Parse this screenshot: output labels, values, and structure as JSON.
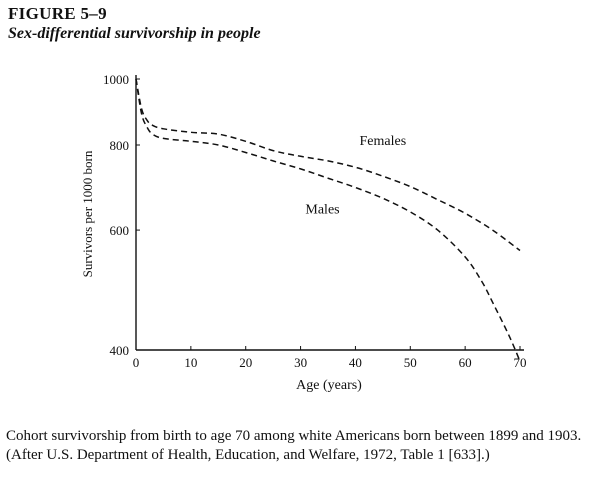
{
  "figure": {
    "label": "FIGURE 5–9",
    "title": "Sex-differential survivorship in people",
    "caption": "Cohort survivorship from birth to age 70 among white Americans born between 1899 and 1903. (After U.S. Department of Health, Education, and Welfare, 1972, Table 1 [633].)"
  },
  "chart_data": {
    "type": "line",
    "xlabel": "Age (years)",
    "ylabel": "Survivors per 1000 born",
    "xlim": [
      0,
      70
    ],
    "ylim": [
      400,
      1000
    ],
    "yscale": "log",
    "x_ticks": [
      0,
      10,
      20,
      30,
      40,
      50,
      60,
      70
    ],
    "y_ticks": [
      400,
      600,
      800,
      1000
    ],
    "grid": false,
    "line_style": "dashed",
    "series": [
      {
        "name": "Females",
        "x": [
          0,
          1,
          2,
          3,
          5,
          10,
          15,
          20,
          25,
          30,
          35,
          40,
          45,
          50,
          55,
          60,
          65,
          70
        ],
        "y": [
          1000,
          905,
          870,
          855,
          845,
          835,
          830,
          810,
          785,
          770,
          758,
          742,
          720,
          695,
          665,
          635,
          600,
          560
        ]
      },
      {
        "name": "Males",
        "x": [
          0,
          1,
          2,
          3,
          5,
          10,
          15,
          20,
          25,
          30,
          35,
          40,
          45,
          50,
          55,
          60,
          63,
          65,
          68,
          70
        ],
        "y": [
          1000,
          890,
          850,
          830,
          818,
          810,
          800,
          780,
          758,
          738,
          715,
          693,
          668,
          638,
          600,
          548,
          505,
          470,
          420,
          385
        ]
      }
    ]
  }
}
